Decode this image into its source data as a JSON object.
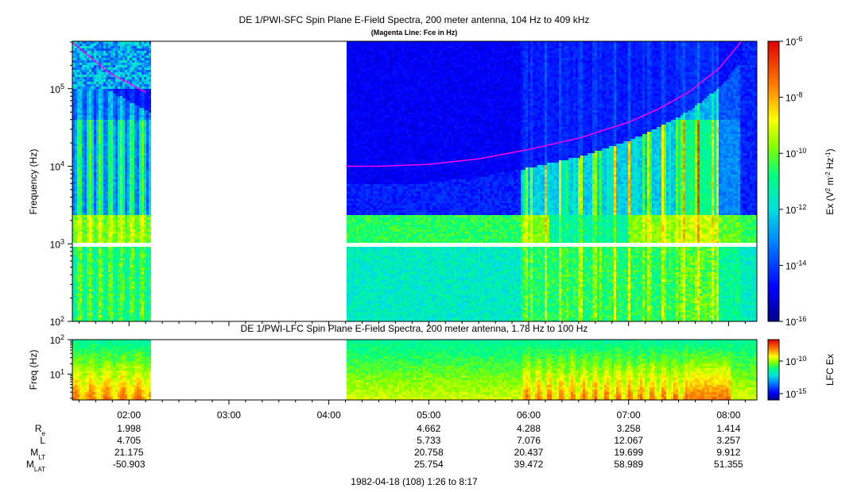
{
  "chart_data": [
    {
      "type": "heatmap",
      "title": "DE 1/PWI-SFC  Spin Plane E-Field Spectra, 200 meter antenna, 104 Hz to 409 kHz",
      "subtitle": "(Magenta Line: Fce in Hz)",
      "ylabel": "Frequency (Hz)",
      "yscale": "log",
      "ylim": [
        100,
        409000
      ],
      "y_ticks": [
        {
          "value": 100,
          "mant": "10",
          "exp": "2"
        },
        {
          "value": 1000,
          "mant": "10",
          "exp": "3"
        },
        {
          "value": 10000,
          "mant": "10",
          "exp": "4"
        },
        {
          "value": 100000,
          "mant": "10",
          "exp": "5"
        }
      ],
      "x_time_range_hours": [
        1.4333,
        8.2833
      ],
      "data_gaps_hours": [
        [
          2.2,
          4.17
        ]
      ],
      "fce_line_color": "#ff00ff",
      "fce_line_hours_hz": [
        [
          1.43,
          400000
        ],
        [
          1.8,
          160000
        ],
        [
          2.17,
          90000
        ],
        [
          4.17,
          10000
        ],
        [
          4.5,
          10000
        ],
        [
          5.0,
          10600
        ],
        [
          5.5,
          12500
        ],
        [
          6.0,
          16500
        ],
        [
          6.5,
          23000
        ],
        [
          7.0,
          37000
        ],
        [
          7.3,
          55000
        ],
        [
          7.6,
          90000
        ],
        [
          7.9,
          180000
        ],
        [
          8.13,
          409000
        ]
      ],
      "colorbar": {
        "label": "Ex (V2 m-2 Hz-1)",
        "scale": "log",
        "range": [
          1e-16,
          1e-06
        ],
        "ticks": [
          {
            "value": 1e-06,
            "mant": "10",
            "exp": "-6"
          },
          {
            "value": 1e-08,
            "mant": "10",
            "exp": "-8"
          },
          {
            "value": 1e-10,
            "mant": "10",
            "exp": "-10"
          },
          {
            "value": 1e-12,
            "mant": "10",
            "exp": "-12"
          },
          {
            "value": 1e-14,
            "mant": "10",
            "exp": "-14"
          },
          {
            "value": 1e-16,
            "mant": "10",
            "exp": "-16"
          }
        ]
      }
    },
    {
      "type": "heatmap",
      "title": "DE 1/PWI-LFC  Spin Plane E-Field Spectra, 200 meter antenna, 1.78 Hz to 100 Hz",
      "ylabel": "Freq (Hz)",
      "yscale": "log",
      "ylim": [
        1.78,
        100
      ],
      "y_ticks": [
        {
          "value": 100,
          "mant": "10",
          "exp": "2"
        },
        {
          "value": 10,
          "mant": "10",
          "exp": "1"
        }
      ],
      "x_time_range_hours": [
        1.4333,
        8.2833
      ],
      "data_gaps_hours": [
        [
          2.2,
          4.17
        ]
      ],
      "colorbar": {
        "label": "LFC Ex",
        "scale": "log",
        "ticks": [
          {
            "value": 1e-10,
            "mant": "10",
            "exp": "-10"
          },
          {
            "value": 1e-15,
            "mant": "10",
            "exp": "-15"
          }
        ]
      }
    }
  ],
  "time_axis": {
    "ticks": [
      {
        "hour": 2,
        "label": "02:00"
      },
      {
        "hour": 3,
        "label": "03:00"
      },
      {
        "hour": 4,
        "label": "04:00"
      },
      {
        "hour": 5,
        "label": "05:00"
      },
      {
        "hour": 6,
        "label": "06:00"
      },
      {
        "hour": 7,
        "label": "07:00"
      },
      {
        "hour": 8,
        "label": "08:00"
      }
    ],
    "footer": "1982-04-18 (108) 1:26 to 8:17"
  },
  "ephemeris": [
    {
      "label": "R",
      "sub": "e",
      "values": {
        "2": "1.998",
        "5": "4.662",
        "6": "4.288",
        "7": "3.258",
        "8": "1.414"
      }
    },
    {
      "label": "L",
      "sub": "",
      "values": {
        "2": "4.705",
        "5": "5.733",
        "6": "7.076",
        "7": "12.067",
        "8": "3.257"
      }
    },
    {
      "label": "M",
      "sub": "LT",
      "values": {
        "2": "21.175",
        "5": "20.758",
        "6": "20.437",
        "7": "19.699",
        "8": "9.912"
      }
    },
    {
      "label": "M",
      "sub": "LAT",
      "values": {
        "2": "-50.903",
        "5": "25.754",
        "6": "39.472",
        "7": "58.989",
        "8": "51.355"
      }
    }
  ]
}
